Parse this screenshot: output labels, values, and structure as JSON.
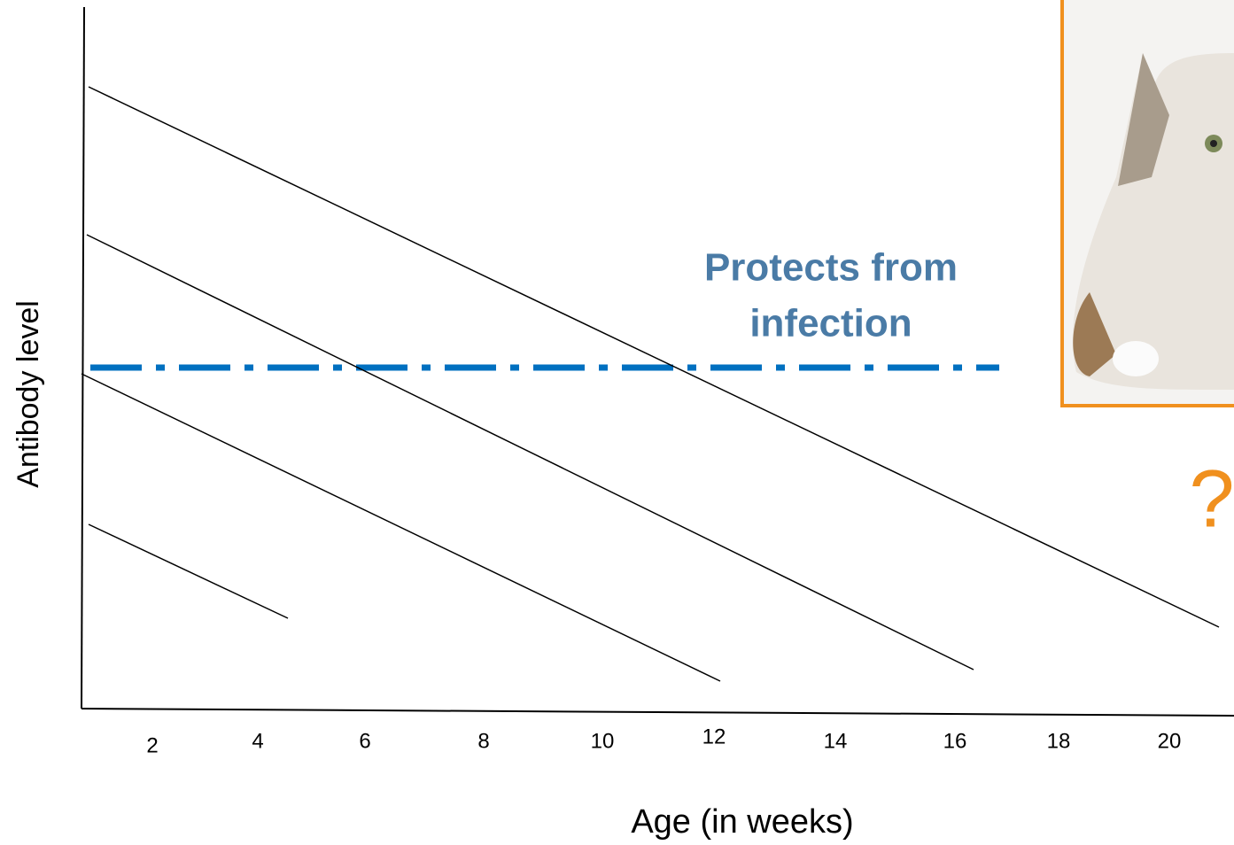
{
  "axis_labels": {
    "y": "Antibody level",
    "x": "Age (in weeks)"
  },
  "x_tick_labels": [
    "2",
    "4",
    "6",
    "8",
    "10",
    "12",
    "14",
    "16",
    "18",
    "20"
  ],
  "annotation": {
    "lines": [
      "Protects from",
      "infection"
    ]
  },
  "question_mark": "?"
}
